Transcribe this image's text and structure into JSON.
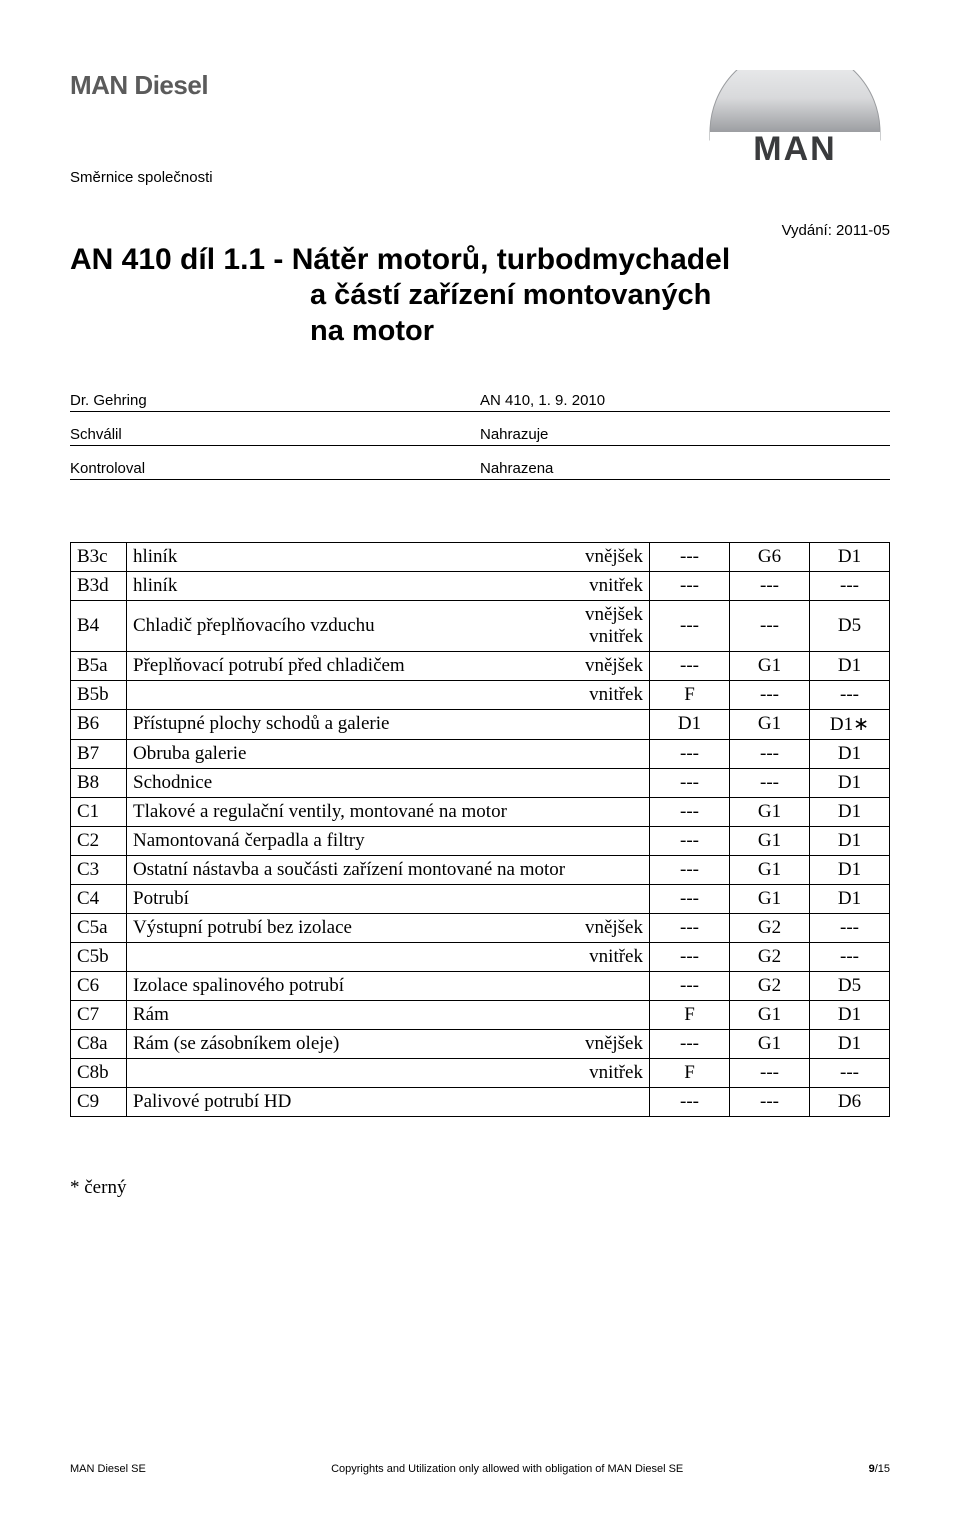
{
  "brand": "MAN Diesel",
  "subhead": "Směrnice společnosti",
  "issue": "Vydání: 2011-05",
  "title_prefix": "AN 410 díl 1.1",
  "title_sep": " - ",
  "title_rest1": "Nátěr motorů, turbodmychadel",
  "title_line2": "a částí zařízení montovaných",
  "title_line3": "na motor",
  "meta": {
    "author_label": "Dr. Gehring",
    "docnum": "AN 410, 1. 9. 2010",
    "approved_label": "Schválil",
    "replaces_label": "Nahrazuje",
    "checked_label": "Kontroloval",
    "replaced_label": "Nahrazena"
  },
  "rows": [
    {
      "code": "B3c",
      "desc": "hliník",
      "sub": "vnějšek",
      "c3": "---",
      "c4": "G6",
      "c5": "D1"
    },
    {
      "code": "B3d",
      "desc": "hliník",
      "sub": "vnitřek",
      "c3": "---",
      "c4": "---",
      "c5": "---"
    },
    {
      "code": "B4",
      "desc": "Chladič přeplňovacího vzduchu",
      "sub1": "vnějšek",
      "sub2": "vnitřek",
      "c3": "---",
      "c4": "---",
      "c5": "D5",
      "twoSub": true
    },
    {
      "code": "B5a",
      "desc": "Přeplňovací potrubí před chladičem",
      "sub": "vnějšek",
      "c3": "---",
      "c4": "G1",
      "c5": "D1"
    },
    {
      "code": "B5b",
      "desc": "",
      "sub": "vnitřek",
      "c3": "F",
      "c4": "---",
      "c5": "---"
    },
    {
      "code": "B6",
      "desc": "Přístupné plochy schodů a galerie",
      "c3": "D1",
      "c4": "G1",
      "c5": "D1∗"
    },
    {
      "code": "B7",
      "desc": "Obruba galerie",
      "c3": "---",
      "c4": "---",
      "c5": "D1"
    },
    {
      "code": "B8",
      "desc": "Schodnice",
      "c3": "---",
      "c4": "---",
      "c5": "D1"
    },
    {
      "code": "C1",
      "desc": "Tlakové a regulační ventily, montované na motor",
      "c3": "---",
      "c4": "G1",
      "c5": "D1",
      "tall": true
    },
    {
      "code": "C2",
      "desc": "Namontovaná čerpadla a filtry",
      "c3": "---",
      "c4": "G1",
      "c5": "D1"
    },
    {
      "code": "C3",
      "desc": "Ostatní nástavba a součásti zařízení montované na motor",
      "c3": "---",
      "c4": "G1",
      "c5": "D1",
      "tall": true
    },
    {
      "code": "C4",
      "desc": "Potrubí",
      "c3": "---",
      "c4": "G1",
      "c5": "D1"
    },
    {
      "code": "C5a",
      "desc": "Výstupní potrubí bez izolace",
      "sub": "vnějšek",
      "c3": "---",
      "c4": "G2",
      "c5": "---"
    },
    {
      "code": "C5b",
      "desc": "",
      "sub": "vnitřek",
      "c3": "---",
      "c4": "G2",
      "c5": "---"
    },
    {
      "code": "C6",
      "desc": "Izolace spalinového potrubí",
      "c3": "---",
      "c4": "G2",
      "c5": "D5"
    },
    {
      "code": "C7",
      "desc": "Rám",
      "c3": "F",
      "c4": "G1",
      "c5": "D1"
    },
    {
      "code": "C8a",
      "desc": "Rám (se zásobníkem oleje)",
      "sub": "vnějšek",
      "c3": "---",
      "c4": "G1",
      "c5": "D1"
    },
    {
      "code": "C8b",
      "desc": "",
      "sub": "vnitřek",
      "c3": "F",
      "c4": "---",
      "c5": "---"
    },
    {
      "code": "C9",
      "desc": "Palivové potrubí HD",
      "c3": "---",
      "c4": "---",
      "c5": "D6"
    }
  ],
  "footnote": "* černý",
  "footer": {
    "left": "MAN Diesel SE",
    "center": "Copyrights and Utilization only allowed with obligation of MAN Diesel SE",
    "page_current": "9",
    "page_sep": "/",
    "page_total": "15"
  },
  "logo_text": "MAN",
  "colors": {
    "brand_gray": "#5b5b5b",
    "logo_silver_light": "#e8e8ea",
    "logo_silver_dark": "#8a8c90",
    "logo_text": "#3b3c3e"
  }
}
